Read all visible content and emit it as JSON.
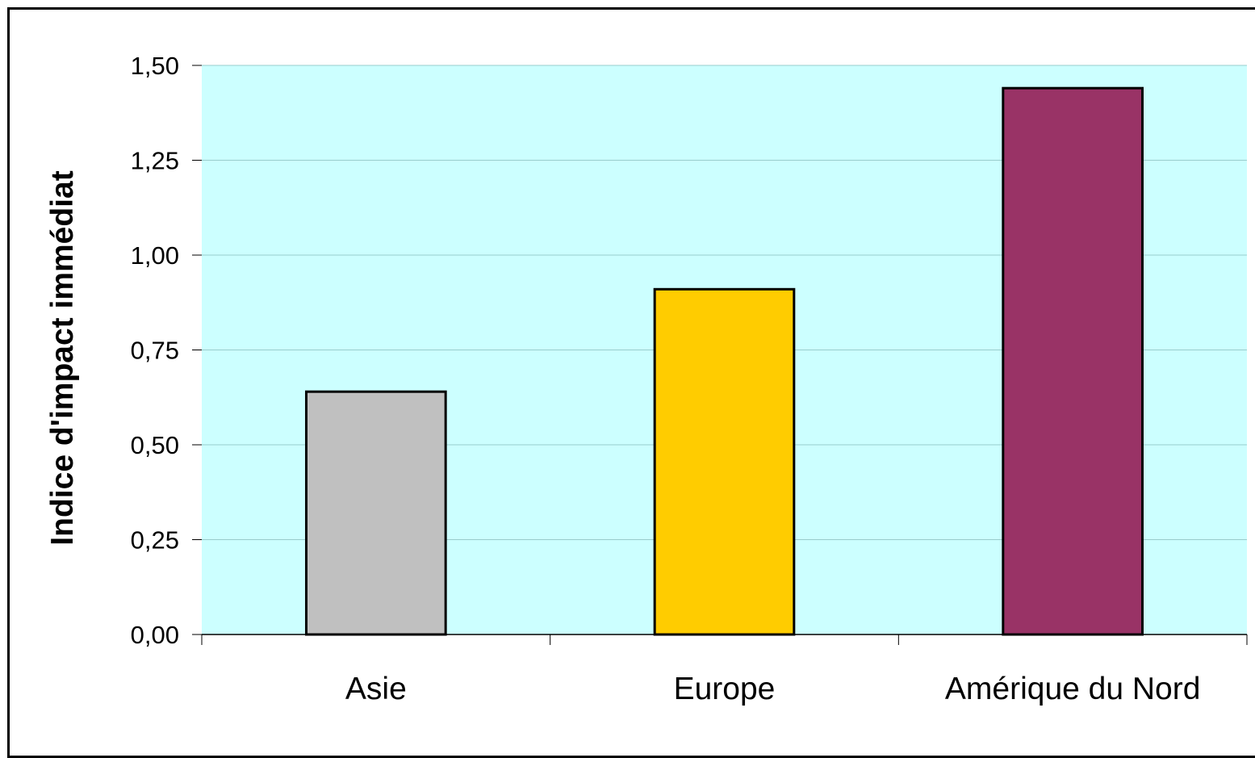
{
  "chart_data": {
    "type": "bar",
    "title": "",
    "xlabel": "",
    "ylabel": "Indice d'impact immédiat",
    "categories": [
      "Asie",
      "Europe",
      "Amérique du Nord"
    ],
    "values": [
      0.64,
      0.91,
      1.44
    ],
    "bar_colors": [
      "#c0c0c0",
      "#ffcc00",
      "#993366"
    ],
    "ylim": [
      0,
      1.5
    ],
    "yticks": [
      0,
      0.25,
      0.5,
      0.75,
      1.0,
      1.25,
      1.5
    ],
    "ytick_labels": [
      "0,00",
      "0,25",
      "0,50",
      "0,75",
      "1,00",
      "1,25",
      "1,50"
    ],
    "grid": true,
    "plot_background": "#ccffff",
    "grid_color": "#99cccc",
    "legend": "none"
  }
}
